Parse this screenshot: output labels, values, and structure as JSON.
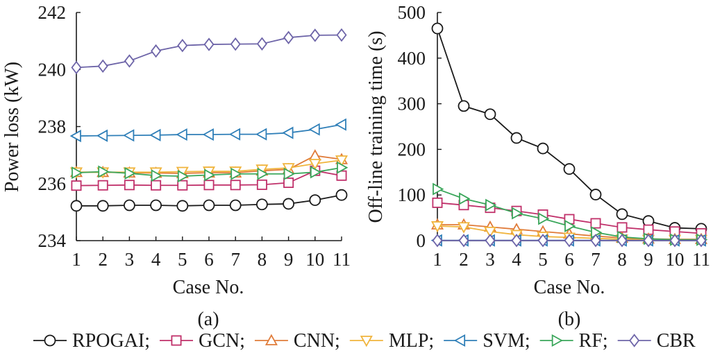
{
  "legend": {
    "items": [
      {
        "key": "RPOGAI",
        "label": "RPOGAI;"
      },
      {
        "key": "GCN",
        "label": "GCN;"
      },
      {
        "key": "CNN",
        "label": "CNN;"
      },
      {
        "key": "MLP",
        "label": "MLP;"
      },
      {
        "key": "SVM",
        "label": "SVM;"
      },
      {
        "key": "RF",
        "label": "RF;"
      },
      {
        "key": "CBR",
        "label": "CBR"
      }
    ]
  },
  "series_style": {
    "RPOGAI": {
      "color": "#1a1a1a",
      "marker": "circle"
    },
    "GCN": {
      "color": "#c0306a",
      "marker": "square"
    },
    "CNN": {
      "color": "#e07b39",
      "marker": "triangle-up"
    },
    "MLP": {
      "color": "#f0b43c",
      "marker": "triangle-down"
    },
    "SVM": {
      "color": "#2f7fb8",
      "marker": "triangle-left"
    },
    "RF": {
      "color": "#3aa65a",
      "marker": "triangle-right"
    },
    "CBR": {
      "color": "#6d64a8",
      "marker": "diamond"
    }
  },
  "chart_data": [
    {
      "type": "line",
      "caption": "(a)",
      "xlabel": "Case No.",
      "ylabel": "Power loss (kW)",
      "x": [
        1,
        2,
        3,
        4,
        5,
        6,
        7,
        8,
        9,
        10,
        11
      ],
      "xticks": [
        "1",
        "2",
        "3",
        "4",
        "5",
        "6",
        "7",
        "8",
        "9",
        "10",
        "11"
      ],
      "ylim": [
        234,
        242
      ],
      "yticks": [
        234,
        236,
        238,
        240,
        242
      ],
      "ytick_labels": [
        "234",
        "236",
        "238",
        "240",
        "242"
      ],
      "grid": false,
      "series": [
        {
          "key": "RPOGAI",
          "values": [
            235.22,
            235.22,
            235.24,
            235.24,
            235.22,
            235.24,
            235.24,
            235.27,
            235.29,
            235.42,
            235.6
          ]
        },
        {
          "key": "GCN",
          "values": [
            235.93,
            235.94,
            235.95,
            235.94,
            235.94,
            235.95,
            235.95,
            235.96,
            236.03,
            236.45,
            236.28
          ]
        },
        {
          "key": "CNN",
          "values": [
            236.4,
            236.4,
            236.38,
            236.37,
            236.36,
            236.38,
            236.38,
            236.45,
            236.5,
            236.98,
            236.85
          ]
        },
        {
          "key": "MLP",
          "values": [
            236.4,
            236.4,
            236.4,
            236.4,
            236.42,
            236.43,
            236.43,
            236.5,
            236.55,
            236.7,
            236.82
          ]
        },
        {
          "key": "SVM",
          "values": [
            237.67,
            237.68,
            237.69,
            237.7,
            237.72,
            237.72,
            237.73,
            237.73,
            237.78,
            237.9,
            238.07
          ]
        },
        {
          "key": "RF",
          "values": [
            236.38,
            236.42,
            236.36,
            236.28,
            236.26,
            236.3,
            236.34,
            236.34,
            236.34,
            236.4,
            236.56
          ]
        },
        {
          "key": "CBR",
          "values": [
            240.07,
            240.12,
            240.3,
            240.65,
            240.84,
            240.88,
            240.89,
            240.9,
            241.12,
            241.2,
            241.21
          ]
        }
      ]
    },
    {
      "type": "line",
      "caption": "(b)",
      "xlabel": "Case No.",
      "ylabel": "Off-line training time (s)",
      "x": [
        1,
        2,
        3,
        4,
        5,
        6,
        7,
        8,
        9,
        10,
        11
      ],
      "xticks": [
        "1",
        "2",
        "3",
        "4",
        "5",
        "6",
        "7",
        "8",
        "9",
        "10",
        "11"
      ],
      "ylim": [
        0,
        500
      ],
      "yticks": [
        0,
        100,
        200,
        300,
        400,
        500
      ],
      "ytick_labels": [
        "0",
        "100",
        "200",
        "300",
        "400",
        "500"
      ],
      "grid": false,
      "series": [
        {
          "key": "RPOGAI",
          "values": [
            465,
            295,
            277,
            225,
            202,
            157,
            101,
            58,
            43,
            28,
            26
          ]
        },
        {
          "key": "GCN",
          "values": [
            83,
            78,
            72,
            65,
            57,
            47,
            38,
            29,
            24,
            20,
            16
          ]
        },
        {
          "key": "CNN",
          "values": [
            35,
            35,
            30,
            25,
            20,
            15,
            10,
            6,
            4,
            3,
            3
          ]
        },
        {
          "key": "MLP",
          "values": [
            32,
            30,
            20,
            13,
            9,
            7,
            5,
            3,
            2,
            2,
            2
          ]
        },
        {
          "key": "SVM",
          "values": [
            0.5,
            0.5,
            0.5,
            0.5,
            0.5,
            0.5,
            0.5,
            0.5,
            0.5,
            0.5,
            0.5
          ]
        },
        {
          "key": "RF",
          "values": [
            113,
            92,
            78,
            60,
            48,
            32,
            18,
            8,
            4,
            2,
            2
          ]
        },
        {
          "key": "CBR",
          "values": [
            0.3,
            0.3,
            0.3,
            0.3,
            0.3,
            0.3,
            0.3,
            0.3,
            0.3,
            0.3,
            0.3
          ]
        }
      ]
    }
  ]
}
